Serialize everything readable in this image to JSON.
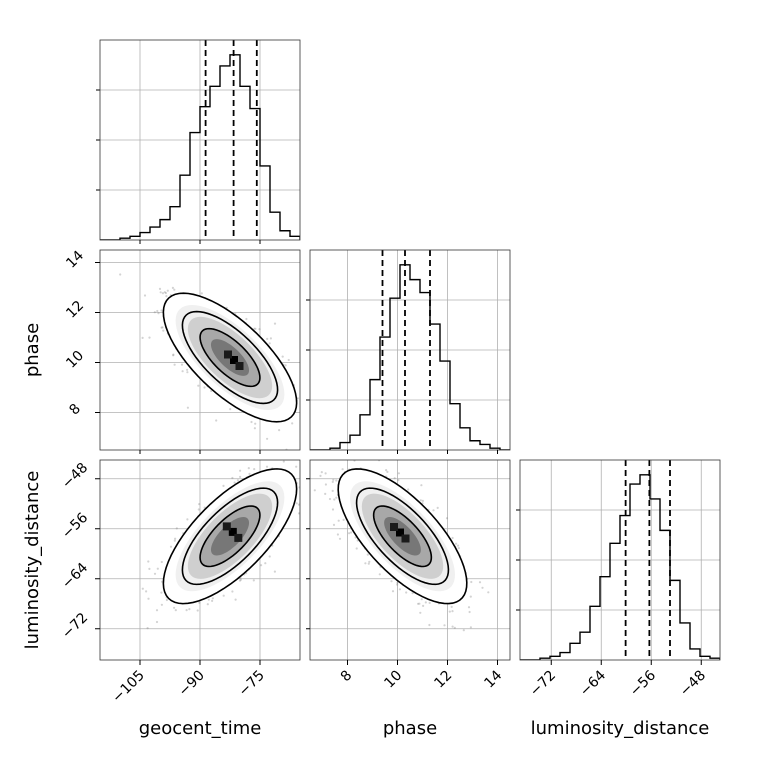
{
  "chart_data": {
    "type": "corner",
    "parameters": [
      "geocent_time",
      "phase",
      "luminosity_distance"
    ],
    "grid": true,
    "colors": {
      "line": "#000000",
      "grid": "#b0b0b0",
      "scatter": "#808080"
    },
    "ranges": {
      "geocent_time": [
        -115,
        -65
      ],
      "phase": [
        6.5,
        14.5
      ],
      "luminosity_distance": [
        -77,
        -45
      ]
    },
    "ticks": {
      "geocent_time": [
        -105,
        -90,
        -75
      ],
      "phase": [
        8,
        10,
        12,
        14
      ],
      "luminosity_distance": [
        -72,
        -64,
        -56,
        -48
      ]
    },
    "tick_labels": {
      "geocent_time": [
        "−105",
        "−90",
        "−75"
      ],
      "phase": [
        "8",
        "10",
        "12",
        "14"
      ],
      "luminosity_distance": [
        "−72",
        "−64",
        "−56",
        "−48"
      ]
    },
    "marginals": {
      "geocent_time": {
        "bin_edges": [
          -115,
          -112.5,
          -110,
          -107.5,
          -105,
          -102.5,
          -100,
          -97.5,
          -95,
          -92.5,
          -90,
          -87.5,
          -85,
          -82.5,
          -80,
          -77.5,
          -75,
          -72.5,
          -70,
          -67.5,
          -65
        ],
        "heights": [
          0,
          0,
          0.01,
          0.02,
          0.04,
          0.07,
          0.11,
          0.18,
          0.35,
          0.58,
          0.72,
          0.83,
          0.94,
          1.0,
          0.83,
          0.71,
          0.4,
          0.15,
          0.05,
          0.02
        ],
        "quantiles": [
          -88.6,
          -81.6,
          -75.8
        ]
      },
      "phase": {
        "bin_edges": [
          6.5,
          6.9,
          7.3,
          7.7,
          8.1,
          8.5,
          8.9,
          9.3,
          9.7,
          10.1,
          10.5,
          10.9,
          11.3,
          11.7,
          12.1,
          12.5,
          12.9,
          13.3,
          13.7,
          14.1,
          14.5
        ],
        "heights": [
          0,
          0,
          0.01,
          0.04,
          0.08,
          0.19,
          0.38,
          0.61,
          0.82,
          1.0,
          0.92,
          0.85,
          0.68,
          0.48,
          0.25,
          0.12,
          0.05,
          0.03,
          0.01,
          0
        ],
        "quantiles": [
          9.4,
          10.3,
          11.3
        ]
      },
      "luminosity_distance": {
        "bin_edges": [
          -77,
          -75.4,
          -73.8,
          -72.2,
          -70.6,
          -69,
          -67.4,
          -65.8,
          -64.2,
          -62.6,
          -61,
          -59.4,
          -57.8,
          -56.2,
          -54.6,
          -53,
          -51.4,
          -49.8,
          -48.2,
          -46.6,
          -45
        ],
        "heights": [
          0,
          0,
          0.01,
          0.02,
          0.04,
          0.09,
          0.15,
          0.29,
          0.45,
          0.63,
          0.78,
          0.95,
          1.0,
          0.87,
          0.7,
          0.43,
          0.2,
          0.06,
          0.02,
          0.01
        ],
        "quantiles": [
          -60.1,
          -56.3,
          -53.0
        ]
      }
    },
    "joint": [
      {
        "x": "geocent_time",
        "y": "phase",
        "mean": [
          -82.5,
          10.2
        ],
        "sd": [
          6.8,
          1.05
        ],
        "rho": -0.7,
        "peak": [
          -81.5,
          10.1
        ]
      },
      {
        "x": "geocent_time",
        "y": "luminosity_distance",
        "mean": [
          -82.5,
          -57.2
        ],
        "sd": [
          6.8,
          4.4
        ],
        "rho": 0.7,
        "peak": [
          -81.8,
          -56.5
        ]
      },
      {
        "x": "phase",
        "y": "luminosity_distance",
        "mean": [
          10.2,
          -57.2
        ],
        "sd": [
          1.05,
          4.4
        ],
        "rho": -0.7,
        "peak": [
          10.1,
          -56.6
        ]
      }
    ]
  }
}
